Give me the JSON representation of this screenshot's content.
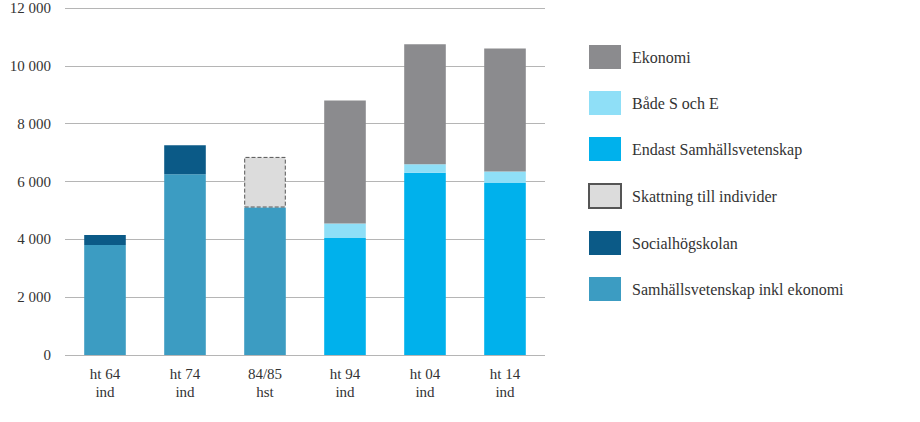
{
  "chart_data": {
    "type": "bar",
    "stacked": true,
    "grid": true,
    "legend": "right",
    "categories": [
      "ht 64\nind",
      "ht 74\nind",
      "84/85\nhst",
      "ht 94\nind",
      "ht 04\nind",
      "ht 14\nind"
    ],
    "ylim": [
      0,
      12000
    ],
    "yticks": [
      0,
      {
        "value": 2000,
        "label": "2 000"
      },
      {
        "value": 4000,
        "label": "4 000"
      },
      {
        "value": 6000,
        "label": "6 000"
      },
      {
        "value": 8000,
        "label": "8 000"
      },
      {
        "value": 10000,
        "label": "10 000"
      },
      {
        "value": 12000,
        "label": "12 000"
      }
    ],
    "series": [
      {
        "name": "Samhällsvetenskap inkl ekonomi",
        "color": "#3c9cc2",
        "values": [
          3800,
          6250,
          5100,
          null,
          null,
          null
        ]
      },
      {
        "name": "Socialhögskolan",
        "color": "#0b5a87",
        "values": [
          350,
          1000,
          null,
          null,
          null,
          null
        ]
      },
      {
        "name": "Skattning till individer",
        "color": "#dcdcdc",
        "line_style": "dashed",
        "values": [
          null,
          null,
          1750,
          null,
          null,
          null
        ]
      },
      {
        "name": "Endast Samhällsvetenskap",
        "color": "#00b1ec",
        "values": [
          null,
          null,
          null,
          4050,
          6300,
          5950
        ]
      },
      {
        "name": "Både S och E",
        "color": "#8fdff7",
        "values": [
          null,
          null,
          null,
          500,
          300,
          400
        ]
      },
      {
        "name": "Ekonomi",
        "color": "#8b8b8e",
        "values": [
          null,
          null,
          null,
          4250,
          4150,
          4250
        ]
      }
    ]
  }
}
